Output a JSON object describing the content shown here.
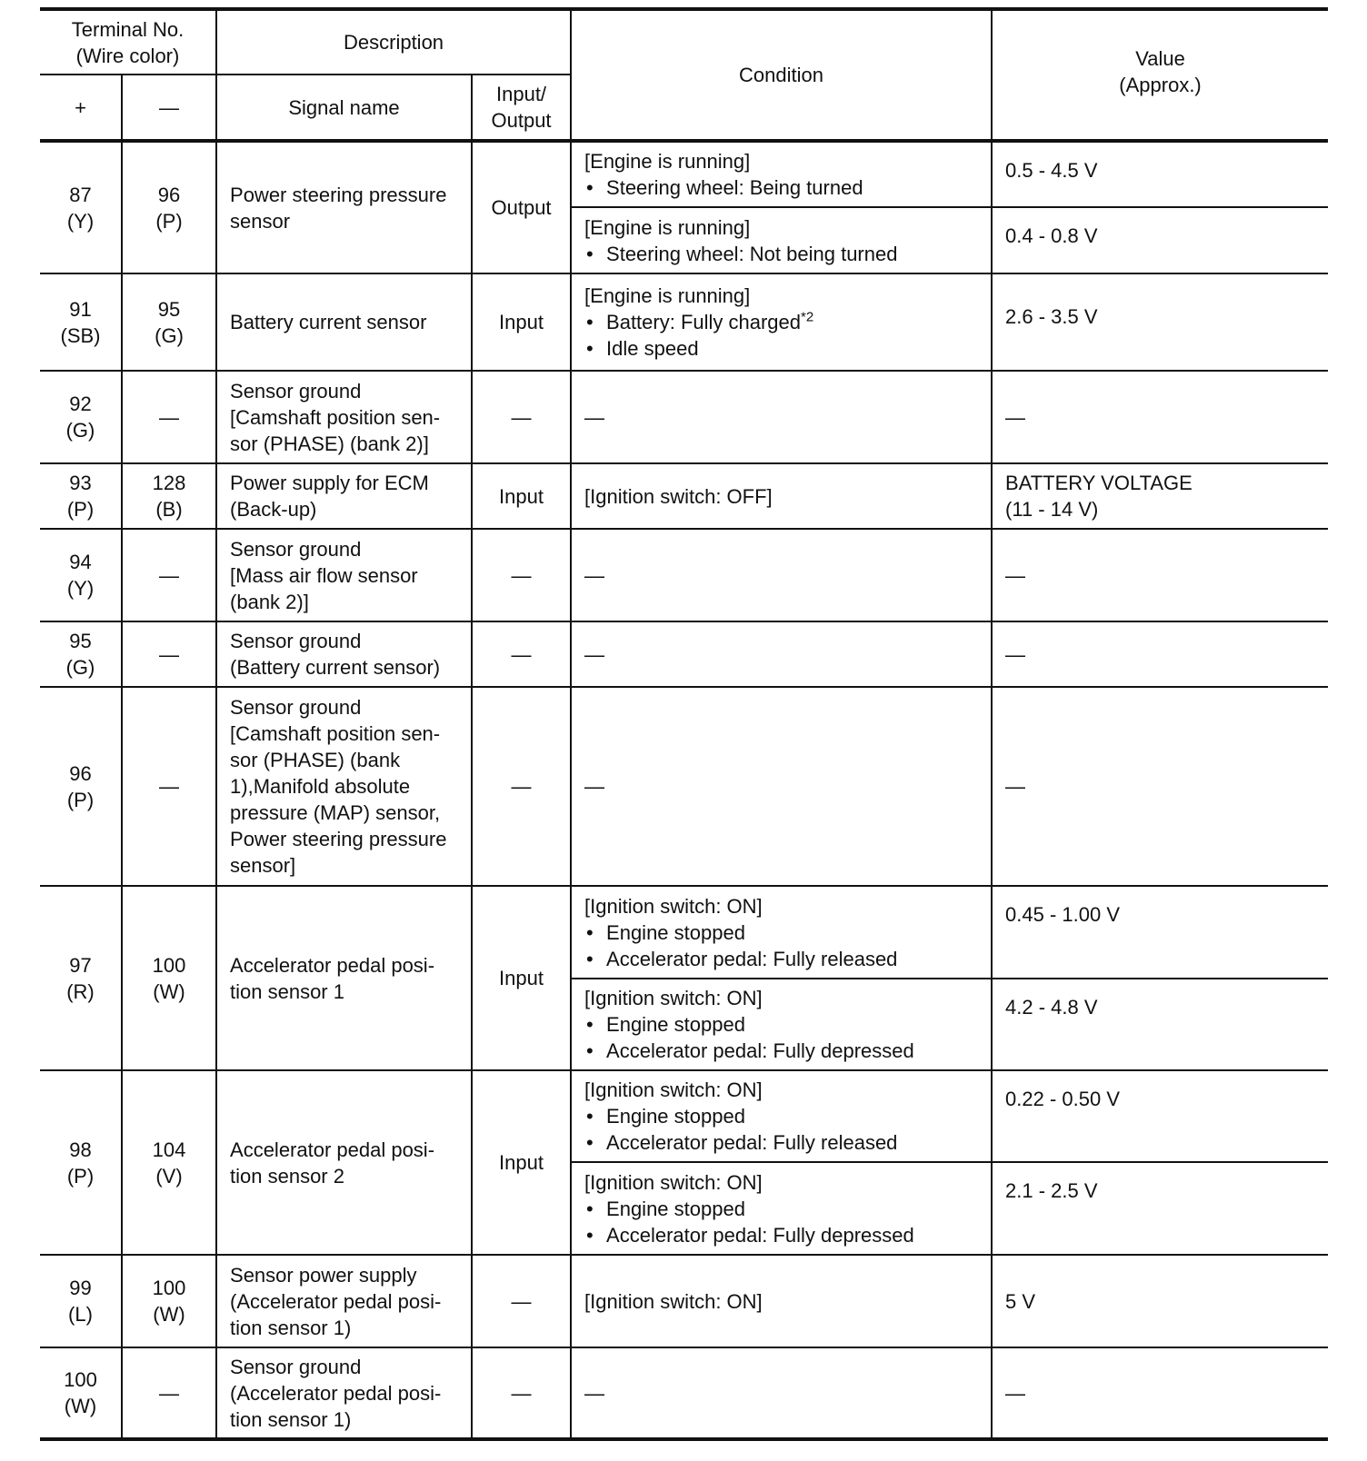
{
  "header": {
    "terminal": "Terminal No.\n(Wire color)",
    "description": "Description",
    "condition": "Condition",
    "value": "Value\n(Approx.)",
    "plus": "+",
    "minus": "—",
    "signal_name": "Signal name",
    "io": "Input/\nOutput"
  },
  "rows": [
    {
      "plus": "87\n(Y)",
      "minus": "96\n(P)",
      "signal": "Power steering pressure\nsensor",
      "io": "Output",
      "h": [
        73,
        73
      ],
      "conditions": [
        {
          "heading": "[Engine is running]",
          "bullets": [
            {
              "text": "Steering wheel: Being turned"
            }
          ],
          "value": "0.5 - 4.5 V"
        },
        {
          "heading": "[Engine is running]",
          "bullets": [
            {
              "text": "Steering wheel: Not being turned"
            }
          ],
          "value": "0.4 - 0.8 V"
        }
      ]
    },
    {
      "plus": "91\n(SB)",
      "minus": "95\n(G)",
      "signal": "Battery current sensor",
      "io": "Input",
      "h": [
        107
      ],
      "conditions": [
        {
          "heading": "[Engine is running]",
          "bullets": [
            {
              "text": "Battery: Fully charged",
              "sup": "*2"
            },
            {
              "text": "Idle speed"
            }
          ],
          "value": "2.6 - 3.5 V"
        }
      ]
    },
    {
      "plus": "92\n(G)",
      "minus": "—",
      "signal": "Sensor ground\n[Camshaft position sen-\nsor (PHASE) (bank 2)]",
      "io": "—",
      "h": [
        102
      ],
      "conditions": [
        {
          "heading": "—",
          "bullets": [],
          "value": "—"
        }
      ]
    },
    {
      "plus": "93\n(P)",
      "minus": "128\n(B)",
      "signal": "Power supply for ECM\n(Back-up)",
      "io": "Input",
      "h": [
        72
      ],
      "conditions": [
        {
          "heading": "[Ignition switch: OFF]",
          "bullets": [],
          "value": "BATTERY VOLTAGE\n(11 - 14 V)"
        }
      ]
    },
    {
      "plus": "94\n(Y)",
      "minus": "—",
      "signal": "Sensor ground\n[Mass air flow sensor\n(bank 2)]",
      "io": "—",
      "h": [
        102
      ],
      "conditions": [
        {
          "heading": "—",
          "bullets": [],
          "value": "—"
        }
      ]
    },
    {
      "plus": "95\n(G)",
      "minus": "—",
      "signal": "Sensor ground\n(Battery current sensor)",
      "io": "—",
      "h": [
        72
      ],
      "conditions": [
        {
          "heading": "—",
          "bullets": [],
          "value": "—"
        }
      ]
    },
    {
      "plus": "96\n(P)",
      "minus": "—",
      "signal": "Sensor ground\n[Camshaft position sen-\nsor (PHASE) (bank\n1),Manifold absolute\npressure (MAP) sensor,\nPower steering pressure\nsensor]",
      "io": "—",
      "h": [
        219
      ],
      "conditions": [
        {
          "heading": "—",
          "bullets": [],
          "value": "—"
        }
      ]
    },
    {
      "plus": "97\n(R)",
      "minus": "100\n(W)",
      "signal": "Accelerator pedal posi-\ntion sensor 1",
      "io": "Input",
      "h": [
        102,
        101
      ],
      "conditions": [
        {
          "heading": "[Ignition switch: ON]",
          "bullets": [
            {
              "text": "Engine stopped"
            },
            {
              "text": "Accelerator pedal: Fully released"
            }
          ],
          "value": "0.45 - 1.00 V"
        },
        {
          "heading": "[Ignition switch: ON]",
          "bullets": [
            {
              "text": "Engine stopped"
            },
            {
              "text": "Accelerator pedal: Fully depressed"
            }
          ],
          "value": "4.2 - 4.8 V"
        }
      ]
    },
    {
      "plus": "98\n(P)",
      "minus": "104\n(V)",
      "signal": "Accelerator pedal posi-\ntion sensor 2",
      "io": "Input",
      "h": [
        101,
        102
      ],
      "conditions": [
        {
          "heading": "[Ignition switch: ON]",
          "bullets": [
            {
              "text": "Engine stopped"
            },
            {
              "text": "Accelerator pedal: Fully released"
            }
          ],
          "value": "0.22 - 0.50 V"
        },
        {
          "heading": "[Ignition switch: ON]",
          "bullets": [
            {
              "text": "Engine stopped"
            },
            {
              "text": "Accelerator pedal: Fully depressed"
            }
          ],
          "value": "2.1 - 2.5 V"
        }
      ]
    },
    {
      "plus": "99\n(L)",
      "minus": "100\n(W)",
      "signal": "Sensor power supply\n(Accelerator pedal posi-\ntion sensor 1)",
      "io": "—",
      "h": [
        102
      ],
      "conditions": [
        {
          "heading": "[Ignition switch: ON]",
          "bullets": [],
          "value": "5 V"
        }
      ]
    },
    {
      "plus": "100\n(W)",
      "minus": "—",
      "signal": "Sensor ground\n(Accelerator pedal posi-\ntion sensor 1)",
      "io": "—",
      "h": [
        101
      ],
      "conditions": [
        {
          "heading": "—",
          "bullets": [],
          "value": "—"
        }
      ]
    }
  ]
}
